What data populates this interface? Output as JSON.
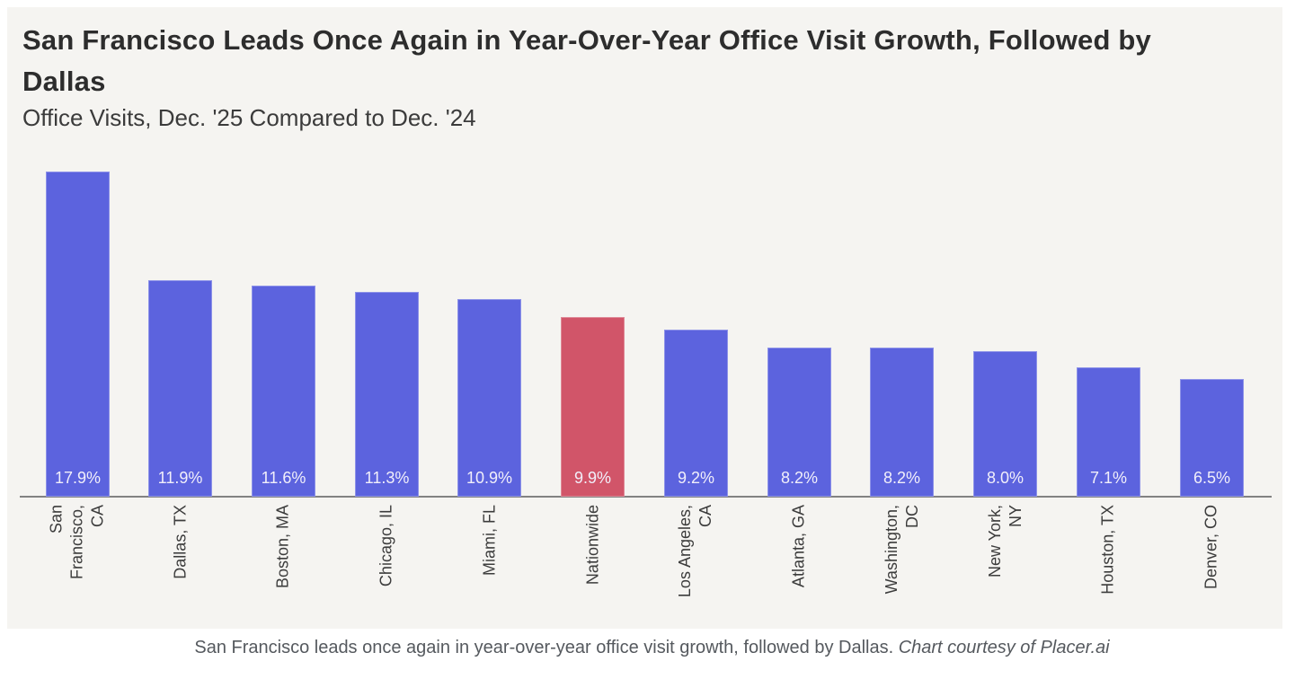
{
  "header": {
    "title": "San Francisco Leads Once Again in Year-Over-Year Office Visit Growth, Followed by Dallas",
    "subtitle": "Office Visits, Dec. '25 Compared to Dec. '24"
  },
  "chart_data": {
    "type": "bar",
    "title": "San Francisco Leads Once Again in Year-Over-Year Office Visit Growth, Followed by Dallas",
    "subtitle": "Office Visits, Dec. '25 Compared to Dec. '24",
    "categories": [
      "San Francisco, CA",
      "Dallas, TX",
      "Boston, MA",
      "Chicago, IL",
      "Miami, FL",
      "Nationwide",
      "Los Angeles, CA",
      "Atlanta, GA",
      "Washington, DC",
      "New York, NY",
      "Houston, TX",
      "Denver, CO"
    ],
    "tick_labels_display": [
      "San\nFrancisco,\nCA",
      "Dallas, TX",
      "Boston, MA",
      "Chicago, IL",
      "Miami, FL",
      "Nationwide",
      "Los Angeles,\nCA",
      "Atlanta, GA",
      "Washington,\nDC",
      "New York,\nNY",
      "Houston, TX",
      "Denver, CO"
    ],
    "values": [
      17.9,
      11.9,
      11.6,
      11.3,
      10.9,
      9.9,
      9.2,
      8.2,
      8.2,
      8.0,
      7.1,
      6.5
    ],
    "value_labels": [
      "17.9%",
      "11.9%",
      "11.6%",
      "11.3%",
      "10.9%",
      "9.9%",
      "9.2%",
      "8.2%",
      "8.2%",
      "8.0%",
      "7.1%",
      "6.5%"
    ],
    "highlight_category": "Nationwide",
    "highlight_index": 5,
    "bar_color": "#5c63de",
    "highlight_color": "#d15569",
    "value_label_color": "#f1effa",
    "axis_line_color": "#828282",
    "panel_background": "#f5f4f1",
    "xlabel": "",
    "ylabel": "",
    "ylim": [
      0,
      18.5
    ],
    "grid": false,
    "legend": null
  },
  "caption": {
    "text": "San Francisco leads once again in year-over-year office visit growth, followed by Dallas. ",
    "credit": "Chart courtesy of Placer.ai"
  }
}
